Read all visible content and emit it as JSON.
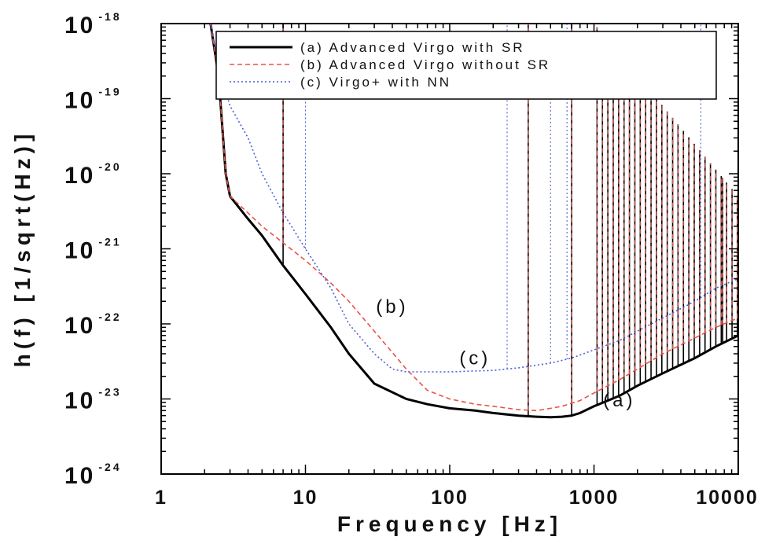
{
  "chart_data": {
    "type": "line",
    "title": "",
    "xlabel": "Frequency [Hz]",
    "ylabel": "h(f) [1/sqrt(Hz)]",
    "xscale": "log",
    "yscale": "log",
    "xlim": [
      1,
      10000
    ],
    "ylim": [
      1e-24,
      1e-18
    ],
    "x_ticks": [
      {
        "value": 1,
        "label": "1"
      },
      {
        "value": 10,
        "label": "10"
      },
      {
        "value": 100,
        "label": "100"
      },
      {
        "value": 1000,
        "label": "1000"
      },
      {
        "value": 10000,
        "label": "10000"
      }
    ],
    "y_ticks": [
      {
        "value": 1e-18,
        "mantissa": "10",
        "exponent": "-18"
      },
      {
        "value": 1e-19,
        "mantissa": "10",
        "exponent": "-19"
      },
      {
        "value": 1e-20,
        "mantissa": "10",
        "exponent": "-20"
      },
      {
        "value": 1e-21,
        "mantissa": "10",
        "exponent": "-21"
      },
      {
        "value": 1e-22,
        "mantissa": "10",
        "exponent": "-22"
      },
      {
        "value": 1e-23,
        "mantissa": "10",
        "exponent": "-23"
      },
      {
        "value": 1e-24,
        "mantissa": "10",
        "exponent": "-24"
      }
    ],
    "grid": false,
    "legend_position": "top-right",
    "series": [
      {
        "name": "(a) Advanced Virgo with SR",
        "color": "#000000",
        "style": "solid",
        "x": [
          2.2,
          2.5,
          2.8,
          3,
          4,
          5,
          7,
          10,
          15,
          20,
          30,
          50,
          70,
          100,
          150,
          200,
          300,
          400,
          500,
          600,
          700,
          800,
          1000,
          1500,
          2000,
          3000,
          5000,
          7000,
          10000
        ],
        "y": [
          1e-18,
          2e-19,
          1e-20,
          5e-21,
          2.5e-21,
          1.5e-21,
          6e-22,
          2.5e-22,
          9e-23,
          4e-23,
          1.6e-23,
          1e-23,
          8.5e-24,
          7.5e-24,
          7e-24,
          6.5e-24,
          6e-24,
          5.8e-24,
          5.7e-24,
          5.8e-24,
          6e-24,
          6.5e-24,
          8e-24,
          1.1e-23,
          1.5e-23,
          2.2e-23,
          3.5e-23,
          5e-23,
          7e-23
        ]
      },
      {
        "name": "(b) Advanced Virgo without SR",
        "color": "#e8524a",
        "style": "dashed",
        "x": [
          2.2,
          2.5,
          2.8,
          3,
          4,
          5,
          7,
          10,
          15,
          20,
          30,
          50,
          70,
          100,
          150,
          200,
          300,
          400,
          500,
          600,
          800,
          1000,
          1500,
          2000,
          3000,
          5000,
          7000,
          10000
        ],
        "y": [
          1e-18,
          2e-19,
          1e-20,
          5e-21,
          3e-21,
          2e-21,
          1.2e-21,
          7e-22,
          3.5e-22,
          2e-22,
          8e-23,
          2.5e-23,
          1.3e-23,
          1e-23,
          8.5e-24,
          8e-24,
          7.2e-24,
          7e-24,
          7.5e-24,
          8e-24,
          9.5e-24,
          1.2e-23,
          1.8e-23,
          2.5e-23,
          4e-23,
          6.5e-23,
          9e-23,
          1.2e-22
        ]
      },
      {
        "name": "(c) Virgo+ with NN",
        "color": "#4a5fd6",
        "style": "dotted",
        "x": [
          2.2,
          2.6,
          3,
          4,
          5,
          7,
          10,
          15,
          20,
          30,
          40,
          50,
          100,
          200,
          300,
          500,
          700,
          1000,
          1500,
          2000,
          3000,
          5000,
          7000,
          10000
        ],
        "y": [
          1e-18,
          2e-19,
          8e-20,
          3e-20,
          1e-20,
          3e-21,
          1e-21,
          3e-22,
          1e-22,
          4e-23,
          2.5e-23,
          2.3e-23,
          2.3e-23,
          2.4e-23,
          2.6e-23,
          3e-23,
          3.5e-23,
          4.5e-23,
          6e-23,
          8e-23,
          1.2e-22,
          2e-22,
          3e-22,
          4e-22
        ]
      }
    ],
    "annotations": [
      {
        "text": "(a)",
        "x": 1500,
        "y": 8e-24
      },
      {
        "text": "(b)",
        "x": 40,
        "y": 1.4e-22
      },
      {
        "text": "(c)",
        "x": 150,
        "y": 2.9e-23
      }
    ]
  }
}
